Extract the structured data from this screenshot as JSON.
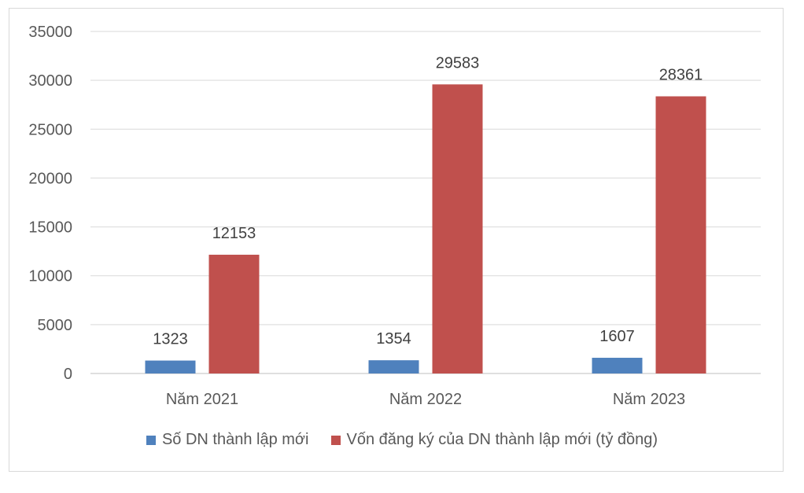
{
  "chart_data": {
    "type": "bar",
    "categories": [
      "Năm 2021",
      "Năm 2022",
      "Năm 2023"
    ],
    "series": [
      {
        "name": "Số DN thành lập mới",
        "values": [
          1323,
          1354,
          1607
        ],
        "color": "#4f81bd"
      },
      {
        "name": "Vốn đăng ký của DN thành lập mới (tỷ đồng)",
        "values": [
          12153,
          29583,
          28361
        ],
        "color": "#c0504d"
      }
    ],
    "ylim": [
      0,
      35000
    ],
    "yticks": [
      "0",
      "5000",
      "10000",
      "15000",
      "20000",
      "25000",
      "30000",
      "35000"
    ],
    "grid": true,
    "legend_position": "bottom",
    "data_labels": true
  }
}
